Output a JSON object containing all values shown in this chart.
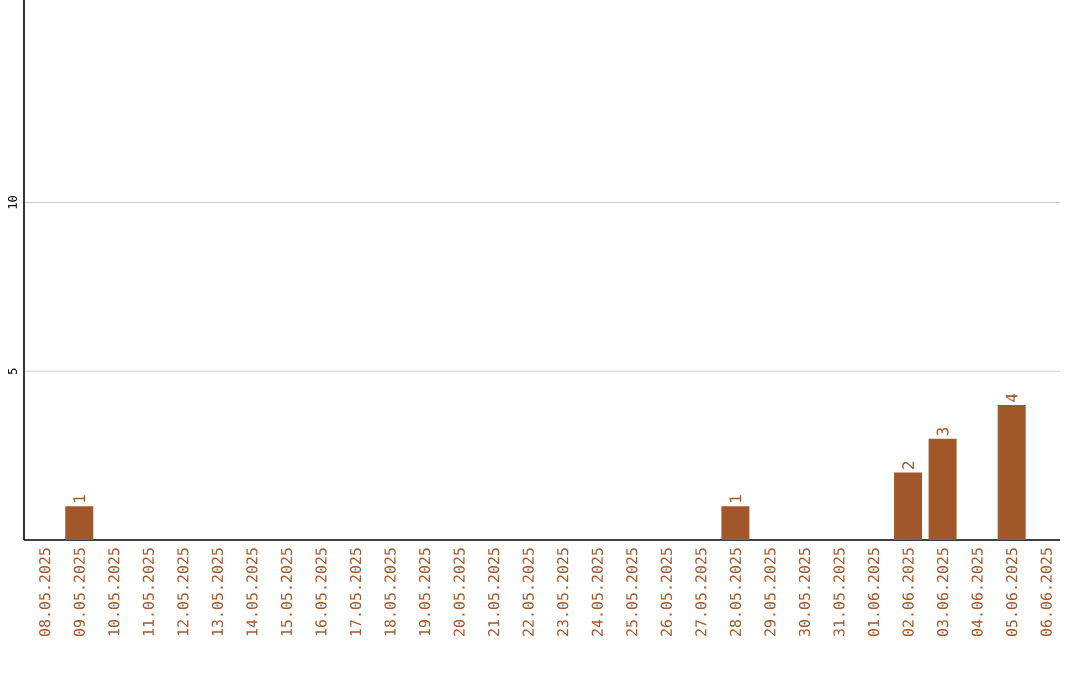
{
  "chart_data": {
    "type": "bar",
    "categories": [
      "08.05.2025",
      "09.05.2025",
      "10.05.2025",
      "11.05.2025",
      "12.05.2025",
      "13.05.2025",
      "14.05.2025",
      "15.05.2025",
      "16.05.2025",
      "17.05.2025",
      "18.05.2025",
      "19.05.2025",
      "20.05.2025",
      "21.05.2025",
      "22.05.2025",
      "23.05.2025",
      "24.05.2025",
      "25.05.2025",
      "26.05.2025",
      "27.05.2025",
      "28.05.2025",
      "29.05.2025",
      "30.05.2025",
      "31.05.2025",
      "01.06.2025",
      "02.06.2025",
      "03.06.2025",
      "04.06.2025",
      "05.06.2025",
      "06.06.2025"
    ],
    "values": [
      0,
      1,
      0,
      0,
      0,
      0,
      0,
      0,
      0,
      0,
      0,
      0,
      0,
      0,
      0,
      0,
      0,
      0,
      0,
      0,
      1,
      0,
      0,
      0,
      0,
      2,
      3,
      0,
      4,
      0
    ],
    "value_labels": [
      null,
      "1",
      null,
      null,
      null,
      null,
      null,
      null,
      null,
      null,
      null,
      null,
      null,
      null,
      null,
      null,
      null,
      null,
      null,
      null,
      "1",
      null,
      null,
      null,
      null,
      "2",
      "3",
      null,
      "4",
      null
    ],
    "color": "#a0572a",
    "ylim": [
      0,
      16
    ],
    "yticks": [
      5,
      10
    ],
    "grid": "y"
  }
}
